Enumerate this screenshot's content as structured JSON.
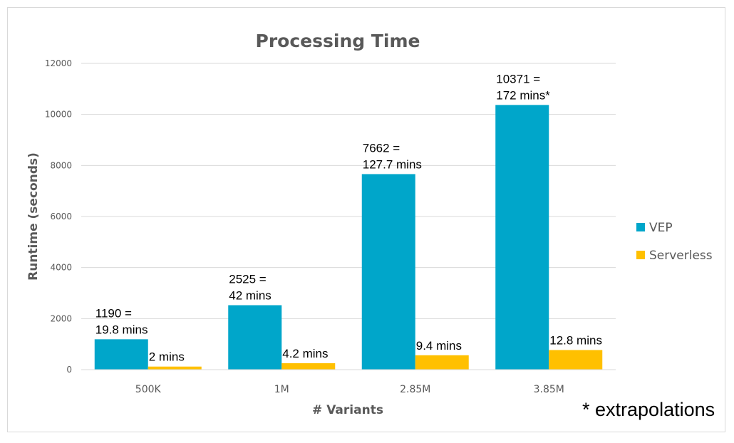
{
  "chart_data": {
    "type": "bar",
    "title": "Processing Time",
    "xlabel": "# Variants",
    "ylabel": "Runtime (seconds)",
    "categories": [
      "500K",
      "1M",
      "2.85M",
      "3.85M"
    ],
    "ylim": [
      0,
      12000
    ],
    "yticks": [
      0,
      2000,
      4000,
      6000,
      8000,
      10000,
      12000
    ],
    "grid": true,
    "legend_position": "right",
    "series": [
      {
        "name": "VEP",
        "color": "#00A6CA",
        "values": [
          1190,
          2525,
          7662,
          10371
        ],
        "labels": [
          [
            "1190 =",
            "19.8 mins"
          ],
          [
            "2525 =",
            "42 mins"
          ],
          [
            "7662 =",
            "127.7 mins"
          ],
          [
            "10371 =",
            "172 mins*"
          ]
        ]
      },
      {
        "name": "Serverless",
        "color": "#FFC000",
        "values": [
          120,
          252,
          564,
          768
        ],
        "labels": [
          [
            "2 mins"
          ],
          [
            "4.2 mins"
          ],
          [
            "9.4 mins"
          ],
          [
            "12.8 mins"
          ]
        ]
      }
    ],
    "footnote": "* extrapolations"
  }
}
